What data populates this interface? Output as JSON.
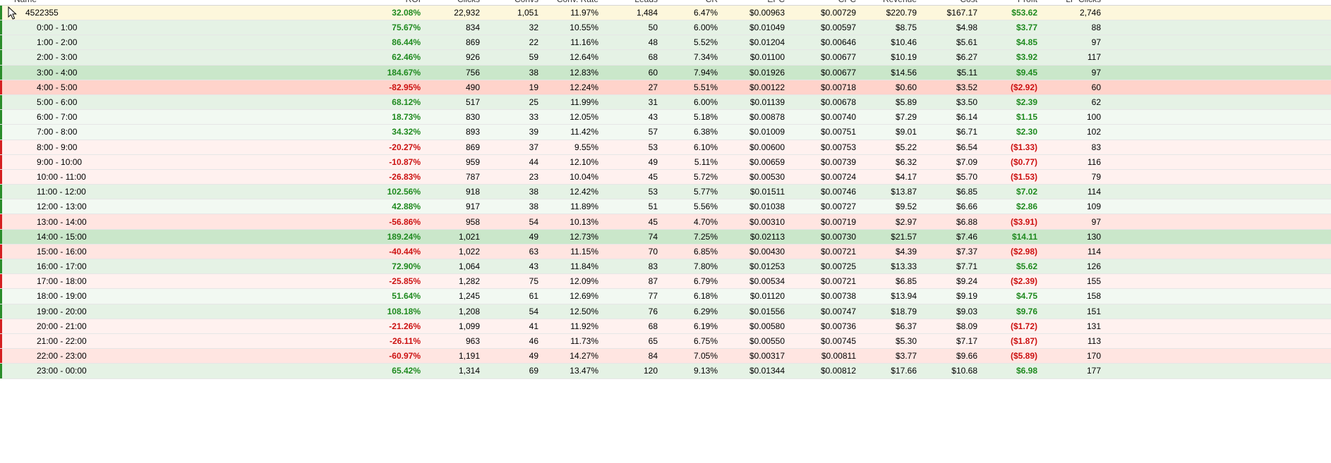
{
  "header": {
    "columns": [
      "Name",
      "ROI",
      "Clicks",
      "Convs",
      "Conv. Rate",
      "Leads",
      "CR",
      "EPC",
      "CPC",
      "Revenue",
      "Cost",
      "Profit",
      "LP Clicks"
    ],
    "column_labels_visible": false
  },
  "summary_row": {
    "name": "4522355",
    "roi": "32.08%",
    "clicks": "22,932",
    "convs": "1,051",
    "conv_rate": "11.97%",
    "leads": "1,484",
    "cr": "6.47%",
    "epc": "$0.00963",
    "cpc": "$0.00729",
    "revenue": "$220.79",
    "cost": "$167.17",
    "profit": "$53.62",
    "lp_clicks": "2,746",
    "sign": "pos"
  },
  "rows": [
    {
      "name": "0:00 - 1:00",
      "roi": "75.67%",
      "clicks": "834",
      "convs": "32",
      "conv_rate": "10.55%",
      "leads": "50",
      "cr": "6.00%",
      "epc": "$0.01049",
      "cpc": "$0.00597",
      "revenue": "$8.75",
      "cost": "$4.98",
      "profit": "$3.77",
      "lp_clicks": "88",
      "sign": "pos",
      "tone": "pos"
    },
    {
      "name": "1:00 - 2:00",
      "roi": "86.44%",
      "clicks": "869",
      "convs": "22",
      "conv_rate": "11.16%",
      "leads": "48",
      "cr": "5.52%",
      "epc": "$0.01204",
      "cpc": "$0.00646",
      "revenue": "$10.46",
      "cost": "$5.61",
      "profit": "$4.85",
      "lp_clicks": "97",
      "sign": "pos",
      "tone": "pos"
    },
    {
      "name": "2:00 - 3:00",
      "roi": "62.46%",
      "clicks": "926",
      "convs": "59",
      "conv_rate": "12.64%",
      "leads": "68",
      "cr": "7.34%",
      "epc": "$0.01100",
      "cpc": "$0.00677",
      "revenue": "$10.19",
      "cost": "$6.27",
      "profit": "$3.92",
      "lp_clicks": "117",
      "sign": "pos",
      "tone": "pos"
    },
    {
      "name": "3:00 - 4:00",
      "roi": "184.67%",
      "clicks": "756",
      "convs": "38",
      "conv_rate": "12.83%",
      "leads": "60",
      "cr": "7.94%",
      "epc": "$0.01926",
      "cpc": "$0.00677",
      "revenue": "$14.56",
      "cost": "$5.11",
      "profit": "$9.45",
      "lp_clicks": "97",
      "sign": "pos",
      "tone": "pos-strong"
    },
    {
      "name": "4:00 - 5:00",
      "roi": "-82.95%",
      "clicks": "490",
      "convs": "19",
      "conv_rate": "12.24%",
      "leads": "27",
      "cr": "5.51%",
      "epc": "$0.00122",
      "cpc": "$0.00718",
      "revenue": "$0.60",
      "cost": "$3.52",
      "profit": "($2.92)",
      "lp_clicks": "60",
      "sign": "neg",
      "tone": "neg-strong"
    },
    {
      "name": "5:00 - 6:00",
      "roi": "68.12%",
      "clicks": "517",
      "convs": "25",
      "conv_rate": "11.99%",
      "leads": "31",
      "cr": "6.00%",
      "epc": "$0.01139",
      "cpc": "$0.00678",
      "revenue": "$5.89",
      "cost": "$3.50",
      "profit": "$2.39",
      "lp_clicks": "62",
      "sign": "pos",
      "tone": "pos"
    },
    {
      "name": "6:00 - 7:00",
      "roi": "18.73%",
      "clicks": "830",
      "convs": "33",
      "conv_rate": "12.05%",
      "leads": "43",
      "cr": "5.18%",
      "epc": "$0.00878",
      "cpc": "$0.00740",
      "revenue": "$7.29",
      "cost": "$6.14",
      "profit": "$1.15",
      "lp_clicks": "100",
      "sign": "pos",
      "tone": "pos-light"
    },
    {
      "name": "7:00 - 8:00",
      "roi": "34.32%",
      "clicks": "893",
      "convs": "39",
      "conv_rate": "11.42%",
      "leads": "57",
      "cr": "6.38%",
      "epc": "$0.01009",
      "cpc": "$0.00751",
      "revenue": "$9.01",
      "cost": "$6.71",
      "profit": "$2.30",
      "lp_clicks": "102",
      "sign": "pos",
      "tone": "pos-light"
    },
    {
      "name": "8:00 - 9:00",
      "roi": "-20.27%",
      "clicks": "869",
      "convs": "37",
      "conv_rate": "9.55%",
      "leads": "53",
      "cr": "6.10%",
      "epc": "$0.00600",
      "cpc": "$0.00753",
      "revenue": "$5.22",
      "cost": "$6.54",
      "profit": "($1.33)",
      "lp_clicks": "83",
      "sign": "neg",
      "tone": "neg-light"
    },
    {
      "name": "9:00 - 10:00",
      "roi": "-10.87%",
      "clicks": "959",
      "convs": "44",
      "conv_rate": "12.10%",
      "leads": "49",
      "cr": "5.11%",
      "epc": "$0.00659",
      "cpc": "$0.00739",
      "revenue": "$6.32",
      "cost": "$7.09",
      "profit": "($0.77)",
      "lp_clicks": "116",
      "sign": "neg",
      "tone": "neg-light"
    },
    {
      "name": "10:00 - 11:00",
      "roi": "-26.83%",
      "clicks": "787",
      "convs": "23",
      "conv_rate": "10.04%",
      "leads": "45",
      "cr": "5.72%",
      "epc": "$0.00530",
      "cpc": "$0.00724",
      "revenue": "$4.17",
      "cost": "$5.70",
      "profit": "($1.53)",
      "lp_clicks": "79",
      "sign": "neg",
      "tone": "neg-light"
    },
    {
      "name": "11:00 - 12:00",
      "roi": "102.56%",
      "clicks": "918",
      "convs": "38",
      "conv_rate": "12.42%",
      "leads": "53",
      "cr": "5.77%",
      "epc": "$0.01511",
      "cpc": "$0.00746",
      "revenue": "$13.87",
      "cost": "$6.85",
      "profit": "$7.02",
      "lp_clicks": "114",
      "sign": "pos",
      "tone": "pos"
    },
    {
      "name": "12:00 - 13:00",
      "roi": "42.88%",
      "clicks": "917",
      "convs": "38",
      "conv_rate": "11.89%",
      "leads": "51",
      "cr": "5.56%",
      "epc": "$0.01038",
      "cpc": "$0.00727",
      "revenue": "$9.52",
      "cost": "$6.66",
      "profit": "$2.86",
      "lp_clicks": "109",
      "sign": "pos",
      "tone": "pos-light"
    },
    {
      "name": "13:00 - 14:00",
      "roi": "-56.86%",
      "clicks": "958",
      "convs": "54",
      "conv_rate": "10.13%",
      "leads": "45",
      "cr": "4.70%",
      "epc": "$0.00310",
      "cpc": "$0.00719",
      "revenue": "$2.97",
      "cost": "$6.88",
      "profit": "($3.91)",
      "lp_clicks": "97",
      "sign": "neg",
      "tone": "neg"
    },
    {
      "name": "14:00 - 15:00",
      "roi": "189.24%",
      "clicks": "1,021",
      "convs": "49",
      "conv_rate": "12.73%",
      "leads": "74",
      "cr": "7.25%",
      "epc": "$0.02113",
      "cpc": "$0.00730",
      "revenue": "$21.57",
      "cost": "$7.46",
      "profit": "$14.11",
      "lp_clicks": "130",
      "sign": "pos",
      "tone": "pos-strong"
    },
    {
      "name": "15:00 - 16:00",
      "roi": "-40.44%",
      "clicks": "1,022",
      "convs": "63",
      "conv_rate": "11.15%",
      "leads": "70",
      "cr": "6.85%",
      "epc": "$0.00430",
      "cpc": "$0.00721",
      "revenue": "$4.39",
      "cost": "$7.37",
      "profit": "($2.98)",
      "lp_clicks": "114",
      "sign": "neg",
      "tone": "neg"
    },
    {
      "name": "16:00 - 17:00",
      "roi": "72.90%",
      "clicks": "1,064",
      "convs": "43",
      "conv_rate": "11.84%",
      "leads": "83",
      "cr": "7.80%",
      "epc": "$0.01253",
      "cpc": "$0.00725",
      "revenue": "$13.33",
      "cost": "$7.71",
      "profit": "$5.62",
      "lp_clicks": "126",
      "sign": "pos",
      "tone": "pos"
    },
    {
      "name": "17:00 - 18:00",
      "roi": "-25.85%",
      "clicks": "1,282",
      "convs": "75",
      "conv_rate": "12.09%",
      "leads": "87",
      "cr": "6.79%",
      "epc": "$0.00534",
      "cpc": "$0.00721",
      "revenue": "$6.85",
      "cost": "$9.24",
      "profit": "($2.39)",
      "lp_clicks": "155",
      "sign": "neg",
      "tone": "neg-light"
    },
    {
      "name": "18:00 - 19:00",
      "roi": "51.64%",
      "clicks": "1,245",
      "convs": "61",
      "conv_rate": "12.69%",
      "leads": "77",
      "cr": "6.18%",
      "epc": "$0.01120",
      "cpc": "$0.00738",
      "revenue": "$13.94",
      "cost": "$9.19",
      "profit": "$4.75",
      "lp_clicks": "158",
      "sign": "pos",
      "tone": "pos-light"
    },
    {
      "name": "19:00 - 20:00",
      "roi": "108.18%",
      "clicks": "1,208",
      "convs": "54",
      "conv_rate": "12.50%",
      "leads": "76",
      "cr": "6.29%",
      "epc": "$0.01556",
      "cpc": "$0.00747",
      "revenue": "$18.79",
      "cost": "$9.03",
      "profit": "$9.76",
      "lp_clicks": "151",
      "sign": "pos",
      "tone": "pos"
    },
    {
      "name": "20:00 - 21:00",
      "roi": "-21.26%",
      "clicks": "1,099",
      "convs": "41",
      "conv_rate": "11.92%",
      "leads": "68",
      "cr": "6.19%",
      "epc": "$0.00580",
      "cpc": "$0.00736",
      "revenue": "$6.37",
      "cost": "$8.09",
      "profit": "($1.72)",
      "lp_clicks": "131",
      "sign": "neg",
      "tone": "neg-light"
    },
    {
      "name": "21:00 - 22:00",
      "roi": "-26.11%",
      "clicks": "963",
      "convs": "46",
      "conv_rate": "11.73%",
      "leads": "65",
      "cr": "6.75%",
      "epc": "$0.00550",
      "cpc": "$0.00745",
      "revenue": "$5.30",
      "cost": "$7.17",
      "profit": "($1.87)",
      "lp_clicks": "113",
      "sign": "neg",
      "tone": "neg-light"
    },
    {
      "name": "22:00 - 23:00",
      "roi": "-60.97%",
      "clicks": "1,191",
      "convs": "49",
      "conv_rate": "14.27%",
      "leads": "84",
      "cr": "7.05%",
      "epc": "$0.00317",
      "cpc": "$0.00811",
      "revenue": "$3.77",
      "cost": "$9.66",
      "profit": "($5.89)",
      "lp_clicks": "170",
      "sign": "neg",
      "tone": "neg"
    },
    {
      "name": "23:00 - 00:00",
      "roi": "65.42%",
      "clicks": "1,314",
      "convs": "69",
      "conv_rate": "13.47%",
      "leads": "120",
      "cr": "9.13%",
      "epc": "$0.01344",
      "cpc": "$0.00812",
      "revenue": "$17.66",
      "cost": "$10.68",
      "profit": "$6.98",
      "lp_clicks": "177",
      "sign": "pos",
      "tone": "pos"
    }
  ],
  "colors": {
    "positive": "#1f8a1f",
    "negative": "#cc1111",
    "summary_bg": "#fdf7dc"
  },
  "icons": {
    "cursor": "mouse-pointer-icon"
  }
}
